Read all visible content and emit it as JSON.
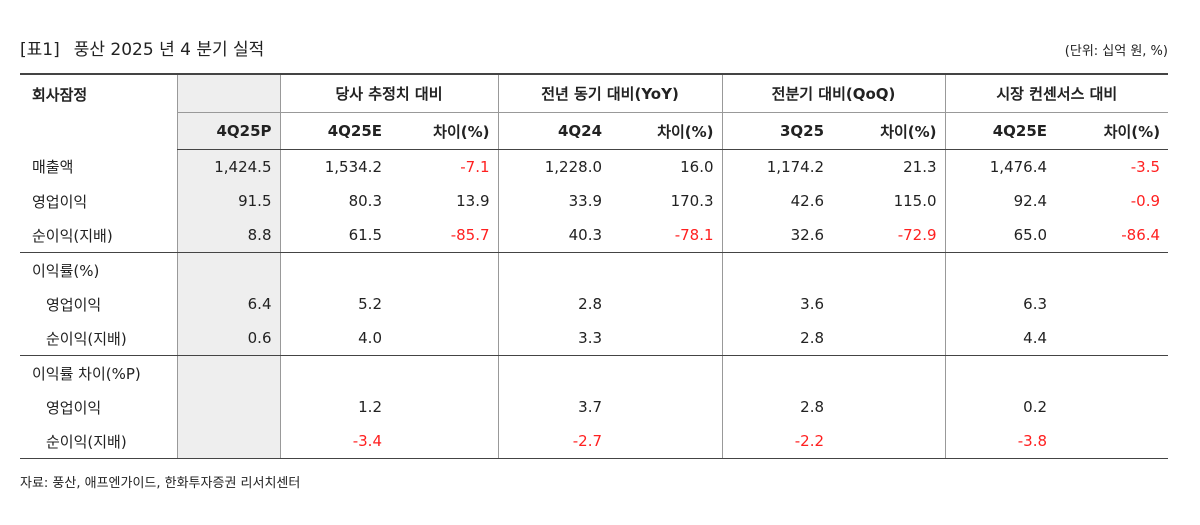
{
  "header": {
    "tag": "[표1]",
    "title": "풍산 2025 년 4 분기 실적",
    "unit": "(단위: 십억 원, %)"
  },
  "table": {
    "corner": "회사잠정",
    "group_headers": [
      "당사 추정치 대비",
      "전년 동기 대비(YoY)",
      "전분기 대비(QoQ)",
      "시장 컨센서스 대비"
    ],
    "sub_headers": [
      "4Q25P",
      "4Q25E",
      "차이(%)",
      "4Q24",
      "차이(%)",
      "3Q25",
      "차이(%)",
      "4Q25E",
      "차이(%)"
    ],
    "groups": [
      {
        "rows": [
          {
            "label": "매출액",
            "cells": [
              "1,424.5",
              "1,534.2",
              "-7.1",
              "1,228.0",
              "16.0",
              "1,174.2",
              "21.3",
              "1,476.4",
              "-3.5"
            ]
          },
          {
            "label": "영업이익",
            "cells": [
              "91.5",
              "80.3",
              "13.9",
              "33.9",
              "170.3",
              "42.6",
              "115.0",
              "92.4",
              "-0.9"
            ]
          },
          {
            "label": "순이익(지배)",
            "cells": [
              "8.8",
              "61.5",
              "-85.7",
              "40.3",
              "-78.1",
              "32.6",
              "-72.9",
              "65.0",
              "-86.4"
            ]
          }
        ]
      },
      {
        "title": "이익률(%)",
        "rows": [
          {
            "label": "영업이익",
            "cells": [
              "6.4",
              "5.2",
              null,
              "2.8",
              null,
              "3.6",
              null,
              "6.3",
              null
            ]
          },
          {
            "label": "순이익(지배)",
            "cells": [
              "0.6",
              "4.0",
              null,
              "3.3",
              null,
              "2.8",
              null,
              "4.4",
              null
            ]
          }
        ]
      },
      {
        "title": "이익률 차이(%P)",
        "rows": [
          {
            "label": "영업이익",
            "cells": [
              null,
              "1.2",
              null,
              "3.7",
              null,
              "2.8",
              null,
              "0.2",
              null
            ]
          },
          {
            "label": "순이익(지배)",
            "cells": [
              null,
              "-3.4",
              null,
              "-2.7",
              null,
              "-2.2",
              null,
              "-3.8",
              null
            ]
          }
        ]
      }
    ]
  },
  "source": "자료: 풍산, 애프엔가이드, 한화투자증권 리서치센터"
}
